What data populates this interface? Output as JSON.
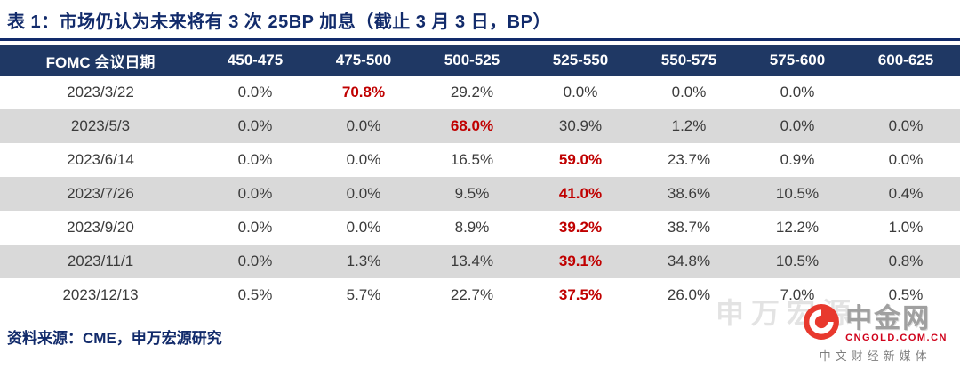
{
  "title": "表 1：市场仍认为未来将有 3 次 25BP 加息（截止 3 月 3 日，BP）",
  "source": "资料来源：CME，申万宏源研究",
  "chart_data": {
    "type": "table",
    "title": "表 1：市场仍认为未来将有 3 次 25BP 加息（截止 3 月 3 日，BP）",
    "columns": [
      "FOMC 会议日期",
      "450-475",
      "475-500",
      "500-525",
      "525-550",
      "550-575",
      "575-600",
      "600-625"
    ],
    "rows": [
      {
        "date": "2023/3/22",
        "values": [
          "0.0%",
          "70.8%",
          "29.2%",
          "0.0%",
          "0.0%",
          "0.0%",
          ""
        ],
        "highlight_column": "475-500"
      },
      {
        "date": "2023/5/3",
        "values": [
          "0.0%",
          "0.0%",
          "68.0%",
          "30.9%",
          "1.2%",
          "0.0%",
          "0.0%"
        ],
        "highlight_column": "500-525"
      },
      {
        "date": "2023/6/14",
        "values": [
          "0.0%",
          "0.0%",
          "16.5%",
          "59.0%",
          "23.7%",
          "0.9%",
          "0.0%"
        ],
        "highlight_column": "525-550"
      },
      {
        "date": "2023/7/26",
        "values": [
          "0.0%",
          "0.0%",
          "9.5%",
          "41.0%",
          "38.6%",
          "10.5%",
          "0.4%"
        ],
        "highlight_column": "525-550"
      },
      {
        "date": "2023/9/20",
        "values": [
          "0.0%",
          "0.0%",
          "8.9%",
          "39.2%",
          "38.7%",
          "12.2%",
          "1.0%"
        ],
        "highlight_column": "525-550"
      },
      {
        "date": "2023/11/1",
        "values": [
          "0.0%",
          "1.3%",
          "13.4%",
          "39.1%",
          "34.8%",
          "10.5%",
          "0.8%"
        ],
        "highlight_column": "525-550"
      },
      {
        "date": "2023/12/13",
        "values": [
          "0.5%",
          "5.7%",
          "22.7%",
          "37.5%",
          "26.0%",
          "7.0%",
          "0.5%"
        ],
        "highlight_column": "525-550"
      }
    ]
  },
  "watermark": {
    "brand": "中金网",
    "url": "CNGOLD.COM.CN",
    "tagline": "中文财经新媒体",
    "ghost_text": "申万宏源"
  },
  "colors": {
    "header_bg": "#1F3864",
    "title_text": "#122B6B",
    "highlight_red": "#C00000",
    "row_shade": "#D9D9D9",
    "body_text": "#3B3B3B",
    "logo_red": "#E8392E"
  }
}
